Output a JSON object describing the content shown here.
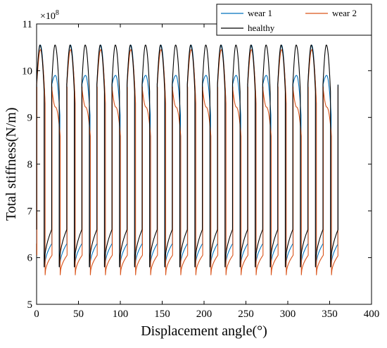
{
  "chart_data": {
    "type": "line",
    "xlabel": "Displacement angle(°)",
    "ylabel": "Total stiffness(N/m)",
    "y_exponent_label": "×10",
    "y_exponent_power": "8",
    "xlim": [
      0,
      400
    ],
    "ylim": [
      5,
      11
    ],
    "xticks": [
      "0",
      "50",
      "100",
      "150",
      "200",
      "250",
      "300",
      "350",
      "400"
    ],
    "yticks": [
      "5",
      "6",
      "7",
      "8",
      "9",
      "10",
      "11"
    ],
    "x_tick_values": [
      0,
      50,
      100,
      150,
      200,
      250,
      300,
      350,
      400
    ],
    "y_tick_values": [
      5,
      6,
      7,
      8,
      9,
      10,
      11
    ],
    "grid": false,
    "legend_position": "top-right",
    "period_deg": 18,
    "x_end": 360,
    "series": [
      {
        "name": "wear 1",
        "color": "#0072BD",
        "legend_label": "wear 1",
        "profile": {
          "drop_offset": 0.8,
          "low_start": 5.8,
          "low_peak": 6.3,
          "jump_offset": 7.2,
          "high_start": 9.7,
          "high_peak": 10.55,
          "high_end": 9.4,
          "alt_high_peak": 9.9,
          "alt_high_end": 9.05
        }
      },
      {
        "name": "wear 2",
        "color": "#D95319",
        "legend_label": "wear 2",
        "profile": {
          "drop_offset": 1.2,
          "low_start": 5.63,
          "low_peak": 6.05,
          "jump_offset": 7.4,
          "high_start": 9.65,
          "high_peak": 10.45,
          "high_end": 9.3,
          "alt_high_peak": 9.22,
          "alt_high_end": 8.6
        }
      },
      {
        "name": "healthy",
        "color": "#000000",
        "legend_label": "healthy",
        "profile": {
          "drop_offset": 0.0,
          "low_start": 5.8,
          "low_peak": 6.6,
          "jump_offset": 7.0,
          "high_start": 9.7,
          "high_peak": 10.55,
          "high_end": 9.55,
          "alt_high_peak": 10.55,
          "alt_high_end": 9.55
        }
      }
    ]
  }
}
